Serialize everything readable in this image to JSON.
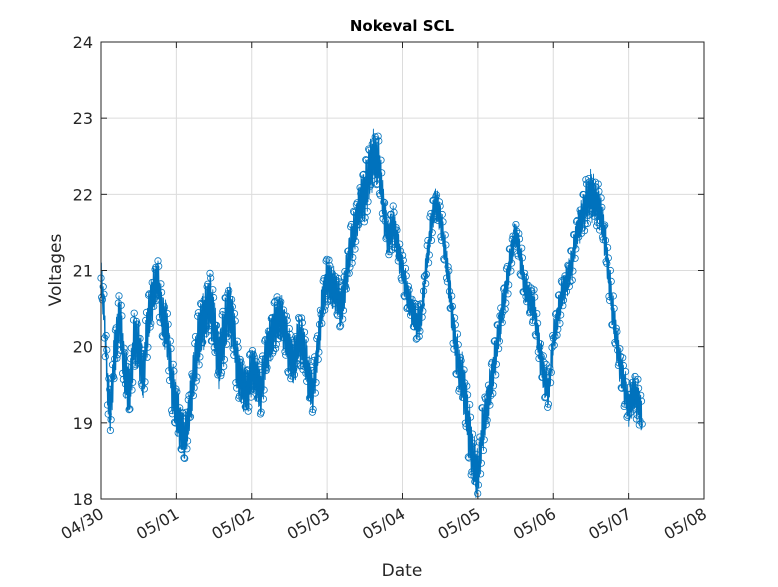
{
  "chart_data": {
    "type": "line",
    "title": "Nokeval SCL",
    "xlabel": "Date",
    "ylabel": "Voltages",
    "x_ticks": [
      "04/30",
      "05/01",
      "05/02",
      "05/03",
      "05/04",
      "05/05",
      "05/06",
      "05/07",
      "05/08"
    ],
    "y_ticks": [
      "18",
      "19",
      "20",
      "21",
      "22",
      "23",
      "24"
    ],
    "xlim": [
      "04/30",
      "05/08"
    ],
    "ylim": [
      18,
      24
    ],
    "grid": true,
    "marker": "circle",
    "series_color": "#0072BD",
    "series": [
      {
        "x_unit": "days after 04/30",
        "x": [
          0.0,
          0.04,
          0.08,
          0.12,
          0.18,
          0.25,
          0.31,
          0.38,
          0.44,
          0.5,
          0.56,
          0.62,
          0.69,
          0.75,
          0.81,
          0.88,
          0.94,
          1.0,
          1.06,
          1.12,
          1.19,
          1.25,
          1.31,
          1.38,
          1.44,
          1.5,
          1.56,
          1.62,
          1.69,
          1.75,
          1.81,
          1.88,
          1.94,
          2.0,
          2.06,
          2.12,
          2.19,
          2.25,
          2.31,
          2.38,
          2.44,
          2.5,
          2.56,
          2.62,
          2.69,
          2.75,
          2.81,
          2.88,
          2.94,
          3.0,
          3.06,
          3.12,
          3.19,
          3.25,
          3.31,
          3.38,
          3.44,
          3.5,
          3.56,
          3.62,
          3.69,
          3.75,
          3.81,
          3.88,
          3.94,
          4.0,
          4.06,
          4.12,
          4.19,
          4.25,
          4.31,
          4.38,
          4.44,
          4.5,
          4.56,
          4.62,
          4.69,
          4.75,
          4.81,
          4.88,
          4.94,
          5.0,
          5.06,
          5.12,
          5.19,
          5.25,
          5.31,
          5.38,
          5.44,
          5.5,
          5.56,
          5.62,
          5.69,
          5.75,
          5.81,
          5.88,
          5.94,
          6.0,
          6.06,
          6.12,
          6.19,
          6.25,
          6.31,
          6.38,
          6.44,
          6.5,
          6.56,
          6.62,
          6.69,
          6.75,
          6.81,
          6.88,
          6.94,
          7.0,
          7.06,
          7.12,
          7.18
        ],
        "y": [
          20.9,
          20.5,
          19.6,
          19.1,
          19.9,
          20.4,
          19.7,
          19.4,
          20.1,
          20.0,
          19.6,
          20.3,
          20.7,
          20.9,
          20.4,
          20.2,
          19.5,
          19.2,
          18.9,
          18.8,
          19.3,
          19.8,
          20.2,
          20.4,
          20.6,
          20.3,
          19.8,
          20.1,
          20.5,
          20.3,
          19.7,
          19.5,
          19.4,
          19.7,
          19.6,
          19.4,
          19.9,
          20.1,
          20.3,
          20.4,
          20.2,
          19.9,
          19.8,
          20.1,
          20.0,
          19.6,
          19.4,
          20.0,
          20.6,
          20.9,
          20.8,
          20.7,
          20.5,
          20.9,
          21.3,
          21.6,
          21.9,
          22.0,
          22.3,
          22.5,
          22.4,
          21.8,
          21.4,
          21.6,
          21.3,
          21.0,
          20.7,
          20.5,
          20.3,
          20.4,
          21.0,
          21.6,
          21.9,
          21.7,
          21.3,
          20.8,
          20.1,
          19.7,
          19.5,
          18.9,
          18.5,
          18.3,
          18.9,
          19.2,
          19.6,
          20.0,
          20.4,
          20.8,
          21.2,
          21.5,
          21.2,
          20.8,
          20.6,
          20.5,
          20.0,
          19.6,
          19.4,
          20.1,
          20.4,
          20.7,
          20.9,
          21.1,
          21.5,
          21.7,
          21.9,
          22.0,
          21.9,
          21.8,
          21.4,
          20.8,
          20.3,
          19.8,
          19.5,
          19.2,
          19.4,
          19.3,
          19.1
        ],
        "y_band": [
          0.35,
          0.35,
          0.4,
          0.45,
          0.5,
          0.5,
          0.5,
          0.5,
          0.5,
          0.5,
          0.5,
          0.5,
          0.45,
          0.4,
          0.45,
          0.5,
          0.5,
          0.5,
          0.45,
          0.4,
          0.45,
          0.5,
          0.55,
          0.55,
          0.55,
          0.55,
          0.55,
          0.55,
          0.55,
          0.55,
          0.5,
          0.45,
          0.45,
          0.45,
          0.45,
          0.45,
          0.45,
          0.45,
          0.45,
          0.45,
          0.45,
          0.45,
          0.45,
          0.45,
          0.45,
          0.45,
          0.4,
          0.4,
          0.4,
          0.4,
          0.4,
          0.4,
          0.4,
          0.4,
          0.4,
          0.4,
          0.45,
          0.5,
          0.55,
          0.5,
          0.45,
          0.4,
          0.35,
          0.35,
          0.35,
          0.3,
          0.3,
          0.3,
          0.3,
          0.3,
          0.3,
          0.3,
          0.3,
          0.3,
          0.3,
          0.35,
          0.4,
          0.45,
          0.5,
          0.55,
          0.5,
          0.45,
          0.45,
          0.4,
          0.4,
          0.35,
          0.35,
          0.3,
          0.3,
          0.25,
          0.3,
          0.3,
          0.3,
          0.3,
          0.35,
          0.35,
          0.3,
          0.3,
          0.3,
          0.3,
          0.3,
          0.3,
          0.3,
          0.35,
          0.4,
          0.45,
          0.4,
          0.35,
          0.35,
          0.35,
          0.35,
          0.35,
          0.35,
          0.35,
          0.35,
          0.35,
          0.35
        ]
      }
    ]
  }
}
